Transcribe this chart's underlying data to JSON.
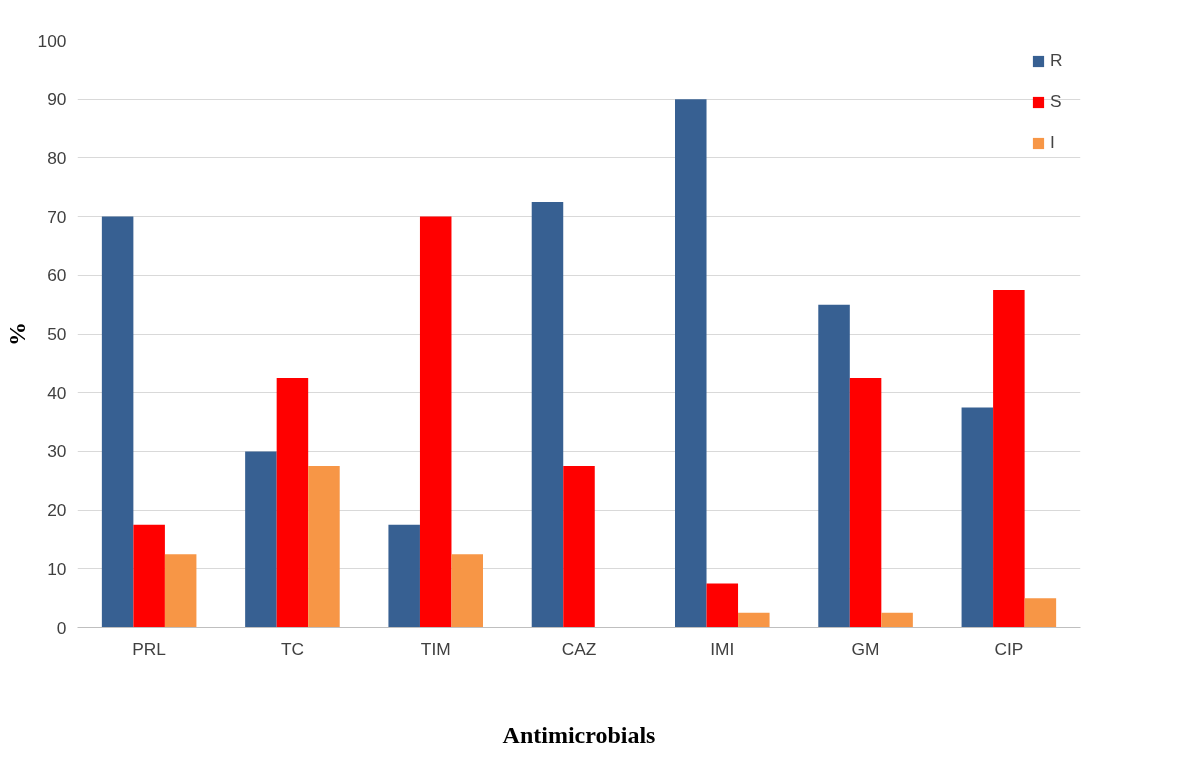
{
  "chart_data": {
    "type": "bar",
    "xlabel": "Antimicrobials",
    "ylabel": "%",
    "categories": [
      "PRL",
      "TC",
      "TIM",
      "CAZ",
      "IMI",
      "GM",
      "CIP"
    ],
    "series": [
      {
        "name": "R",
        "color": "#376092",
        "values": [
          70,
          30,
          17.5,
          72.5,
          90,
          55,
          37.5
        ]
      },
      {
        "name": "S",
        "color": "#ff0000",
        "values": [
          17.5,
          42.5,
          70,
          27.5,
          7.5,
          42.5,
          57.5
        ]
      },
      {
        "name": "I",
        "color": "#f79646",
        "values": [
          12.5,
          27.5,
          12.5,
          0,
          2.5,
          2.5,
          5
        ]
      }
    ],
    "ylim": [
      0,
      100
    ],
    "yticks": [
      0,
      10,
      20,
      30,
      40,
      50,
      60,
      70,
      80,
      90,
      100
    ],
    "grid": "y",
    "legend": "top right"
  }
}
